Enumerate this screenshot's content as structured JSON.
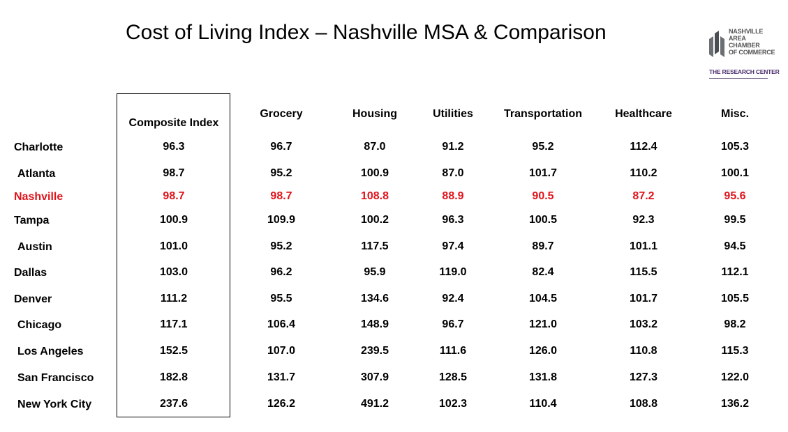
{
  "title": "Cost of Living Index – Nashville MSA & Comparison",
  "logo": {
    "lines": [
      "NASHVILLE",
      "AREA",
      "CHAMBER",
      "OF COMMERCE"
    ],
    "subtitle": "THE RESEARCH CENTER"
  },
  "colors": {
    "highlight": "#e0141c",
    "logo_purple": "#4a2c6b"
  },
  "table": {
    "columns": [
      "Composite Index",
      "Grocery",
      "Housing",
      "Utilities",
      "Transportation",
      "Healthcare",
      "Misc."
    ],
    "rows": [
      {
        "city": "Charlotte",
        "highlight": false,
        "values": [
          "96.3",
          "96.7",
          "87.0",
          "91.2",
          "95.2",
          "112.4",
          "105.3"
        ]
      },
      {
        "city": "Atlanta",
        "highlight": false,
        "values": [
          "98.7",
          "95.2",
          "100.9",
          "87.0",
          "101.7",
          "110.2",
          "100.1"
        ]
      },
      {
        "city": "Nashville",
        "highlight": true,
        "values": [
          "98.7",
          "98.7",
          "108.8",
          "88.9",
          "90.5",
          "87.2",
          "95.6"
        ]
      },
      {
        "city": "Tampa",
        "highlight": false,
        "values": [
          "100.9",
          "109.9",
          "100.2",
          "96.3",
          "100.5",
          "92.3",
          "99.5"
        ]
      },
      {
        "city": "Austin",
        "highlight": false,
        "values": [
          "101.0",
          "95.2",
          "117.5",
          "97.4",
          "89.7",
          "101.1",
          "94.5"
        ]
      },
      {
        "city": "Dallas",
        "highlight": false,
        "values": [
          "103.0",
          "96.2",
          "95.9",
          "119.0",
          "82.4",
          "115.5",
          "112.1"
        ]
      },
      {
        "city": "Denver",
        "highlight": false,
        "values": [
          "111.2",
          "95.5",
          "134.6",
          "92.4",
          "104.5",
          "101.7",
          "105.5"
        ]
      },
      {
        "city": "Chicago",
        "highlight": false,
        "values": [
          "117.1",
          "106.4",
          "148.9",
          "96.7",
          "121.0",
          "103.2",
          "98.2"
        ]
      },
      {
        "city": "Los Angeles",
        "highlight": false,
        "values": [
          "152.5",
          "107.0",
          "239.5",
          "111.6",
          "126.0",
          "110.8",
          "115.3"
        ]
      },
      {
        "city": "San Francisco",
        "highlight": false,
        "values": [
          "182.8",
          "131.7",
          "307.9",
          "128.5",
          "131.8",
          "127.3",
          "122.0"
        ]
      },
      {
        "city": "New York City",
        "highlight": false,
        "values": [
          "237.6",
          "126.2",
          "491.2",
          "102.3",
          "110.4",
          "108.8",
          "136.2"
        ]
      }
    ]
  }
}
